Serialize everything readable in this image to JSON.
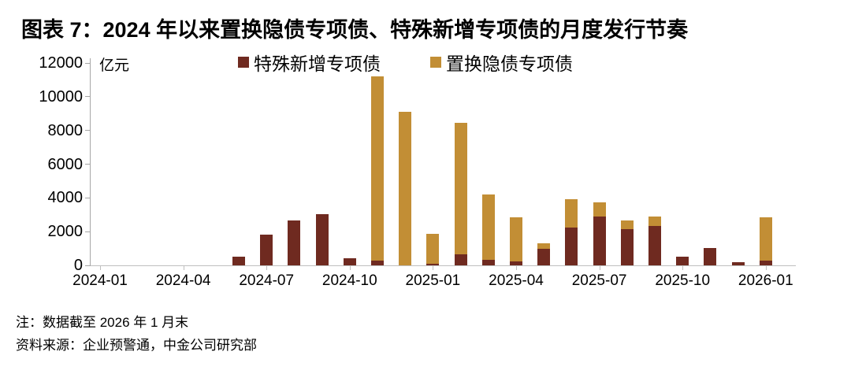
{
  "title": "图表 7：2024 年以来置换隐债专项债、特殊新增专项债的月度发行节奏",
  "notes": {
    "line1": "注：数据截至 2026 年 1 月末",
    "line2": "资料来源：企业预警通，中金公司研究部"
  },
  "chart_data": {
    "type": "bar",
    "stacked": true,
    "unit_label": "亿元",
    "ylim": [
      0,
      12000
    ],
    "yticks": [
      0,
      2000,
      4000,
      6000,
      8000,
      10000,
      12000
    ],
    "grid": false,
    "legend_position": "top",
    "categories": [
      "2024-01",
      "2024-02",
      "2024-03",
      "2024-04",
      "2024-05",
      "2024-06",
      "2024-07",
      "2024-08",
      "2024-09",
      "2024-10",
      "2024-11",
      "2024-12",
      "2025-01",
      "2025-02",
      "2025-03",
      "2025-04",
      "2025-05",
      "2025-06",
      "2025-07",
      "2025-08",
      "2025-09",
      "2025-10",
      "2025-11",
      "2025-12",
      "2026-01"
    ],
    "xticks": [
      {
        "i": 0,
        "label": "2024-01"
      },
      {
        "i": 3,
        "label": "2024-04"
      },
      {
        "i": 6,
        "label": "2024-07"
      },
      {
        "i": 9,
        "label": "2024-10"
      },
      {
        "i": 12,
        "label": "2025-01"
      },
      {
        "i": 15,
        "label": "2025-04"
      },
      {
        "i": 18,
        "label": "2025-07"
      },
      {
        "i": 21,
        "label": "2025-10"
      },
      {
        "i": 24,
        "label": "2026-01"
      }
    ],
    "series": [
      {
        "name": "特殊新增专项债",
        "color": "#6F2A20",
        "values": [
          0,
          0,
          0,
          0,
          0,
          500,
          1800,
          2650,
          3050,
          400,
          300,
          0,
          100,
          650,
          350,
          250,
          1000,
          2250,
          2900,
          2150,
          2350,
          500,
          1050,
          200,
          300
        ]
      },
      {
        "name": "置换隐债专项债",
        "color": "#C28E35",
        "values": [
          0,
          0,
          0,
          0,
          0,
          0,
          0,
          0,
          0,
          0,
          10900,
          9100,
          1780,
          7800,
          3850,
          2600,
          300,
          1650,
          850,
          500,
          550,
          0,
          0,
          0,
          2550
        ]
      }
    ]
  }
}
